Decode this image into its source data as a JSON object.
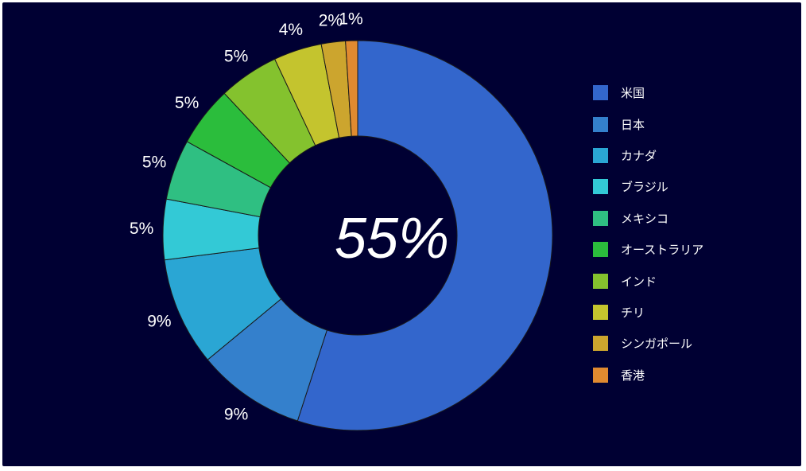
{
  "chart_data": {
    "type": "pie",
    "donut": true,
    "center_label": "55%",
    "categories": [
      "米国",
      "日本",
      "カナダ",
      "ブラジル",
      "メキシコ",
      "オーストラリア",
      "インド",
      "チリ",
      "シンガポール",
      "香港"
    ],
    "values": [
      55,
      9,
      9,
      5,
      5,
      5,
      5,
      4,
      2,
      1
    ],
    "value_labels": [
      "",
      "9%",
      "9%",
      "5%",
      "5%",
      "5%",
      "5%",
      "4%",
      "2%",
      "1%"
    ],
    "colors": [
      "#3366cc",
      "#3480cc",
      "#2aa6d4",
      "#33c9d6",
      "#2fbf82",
      "#2bbd3c",
      "#84c22e",
      "#c4c42e",
      "#cca52e",
      "#e08a30"
    ],
    "legend_position": "right",
    "title": "",
    "xlabel": "",
    "ylabel": ""
  }
}
